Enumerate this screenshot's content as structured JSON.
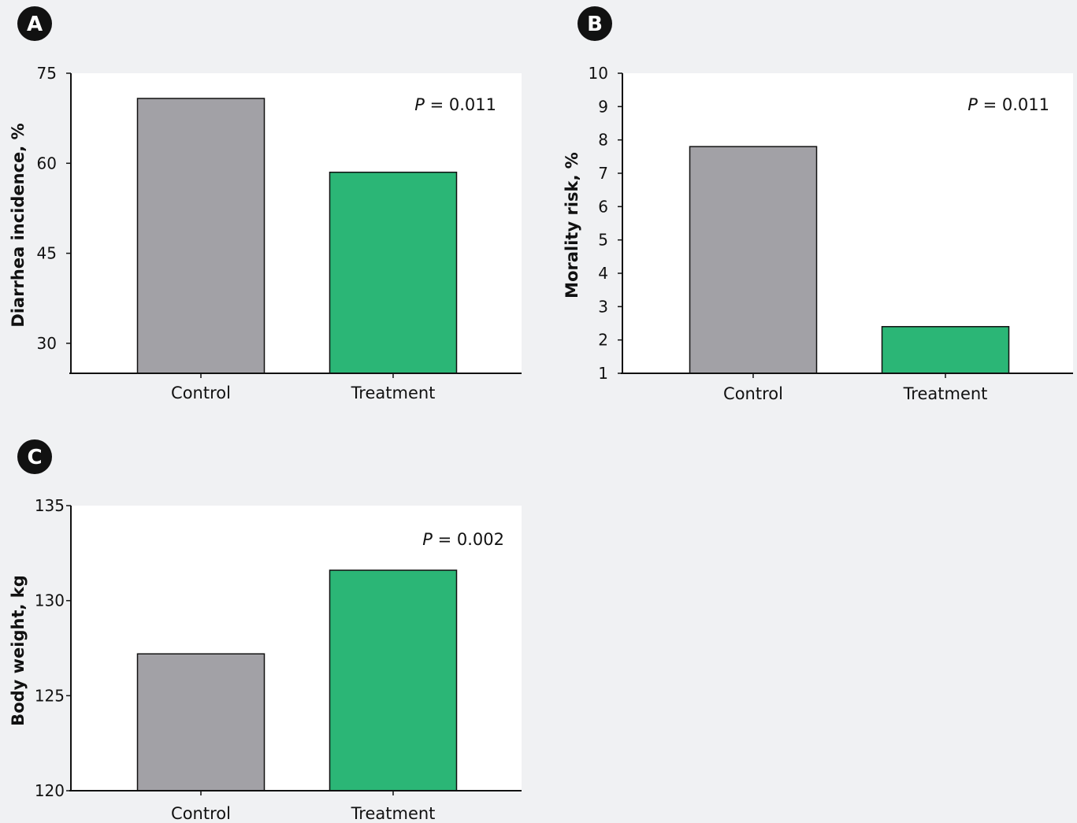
{
  "panels": [
    {
      "label": "A",
      "annotation": {
        "prefix": "P",
        "rest": " = 0.011"
      }
    },
    {
      "label": "B",
      "annotation": {
        "prefix": "P",
        "rest": " = 0.011"
      }
    },
    {
      "label": "C",
      "annotation": {
        "prefix": "P",
        "rest": " = 0.002"
      }
    }
  ],
  "colors": {
    "control": "#a2a1a6",
    "treatment": "#2bb676",
    "plot_background": "#ffffff",
    "page_background": "#f0f1f3",
    "axis": "#111111",
    "badge": "#111111"
  },
  "chart_data": [
    {
      "type": "bar",
      "categories": [
        "Control",
        "Treatment"
      ],
      "values": [
        70.8,
        58.5
      ],
      "ylabel": "Diarrhea incidence, %",
      "xlabel": "",
      "ylim": [
        25,
        75
      ],
      "yticks": [
        30,
        45,
        60,
        75
      ],
      "grid": false
    },
    {
      "type": "bar",
      "categories": [
        "Control",
        "Treatment"
      ],
      "values": [
        7.8,
        2.4
      ],
      "ylabel": "Morality risk, %",
      "xlabel": "",
      "ylim": [
        1,
        10
      ],
      "yticks": [
        1,
        2,
        3,
        4,
        5,
        6,
        7,
        8,
        9,
        10
      ],
      "grid": false
    },
    {
      "type": "bar",
      "categories": [
        "Control",
        "Treatment"
      ],
      "values": [
        127.2,
        131.6
      ],
      "ylabel": "Body weight, kg",
      "xlabel": "",
      "ylim": [
        120,
        135
      ],
      "yticks": [
        120,
        125,
        130,
        135
      ],
      "grid": false
    }
  ]
}
